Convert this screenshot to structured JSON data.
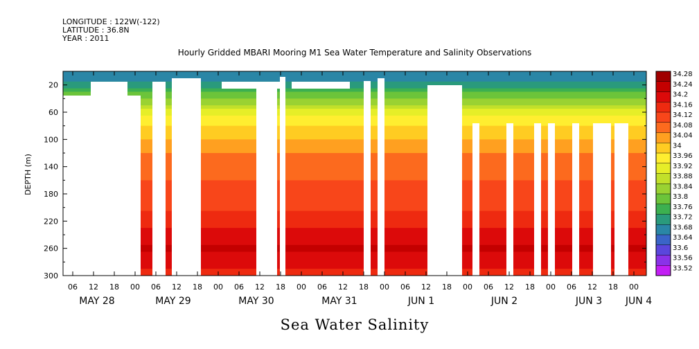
{
  "header": {
    "longitude": "LONGITUDE : 122W(-122)",
    "latitude": "LATITUDE : 36.8N",
    "year": "YEAR : 2011"
  },
  "chart_data": {
    "type": "heatmap",
    "title": "Hourly Gridded MBARI Mooring M1 Sea Water Temperature and Salinity Observations",
    "xlabel": "Sea Water Salinity",
    "ylabel": "DEPTH (m)",
    "ylim": [
      300,
      0
    ],
    "y_ticks": [
      20,
      60,
      100,
      140,
      180,
      220,
      260,
      300
    ],
    "hour_ticks": [
      "06",
      "12",
      "18",
      "00",
      "06",
      "12",
      "18",
      "00",
      "06",
      "12",
      "18",
      "00",
      "06",
      "12",
      "18",
      "00",
      "06",
      "12",
      "18",
      "00",
      "06",
      "12",
      "18",
      "00",
      "06",
      "12",
      "18",
      "00"
    ],
    "date_labels": [
      "MAY 28",
      "MAY 29",
      "MAY 30",
      "MAY 31",
      "JUN  1",
      "JUN  2",
      "JUN  3",
      "JUN  4"
    ],
    "colorbar_levels": [
      "34.28",
      "34.24",
      "34.2",
      "34.16",
      "34.12",
      "34.08",
      "34.04",
      "34",
      "33.96",
      "33.92",
      "33.88",
      "33.84",
      "33.8",
      "33.76",
      "33.72",
      "33.68",
      "33.64",
      "33.6",
      "33.56",
      "33.52"
    ],
    "colorbar_colors": [
      "#a00000",
      "#c40000",
      "#dc0a0a",
      "#ee2a10",
      "#f8461a",
      "#fc6a1e",
      "#ffa020",
      "#ffcc22",
      "#ffee30",
      "#e6ee28",
      "#c2e02a",
      "#9ad232",
      "#6cc43a",
      "#3cb050",
      "#2a9a7c",
      "#2a86a6",
      "#3a64c8",
      "#5a46dc",
      "#8a32e8",
      "#c21ef4"
    ],
    "profile_depth_m": [
      12,
      20,
      40,
      60,
      80,
      100,
      120,
      140,
      160,
      180,
      200,
      220,
      240,
      260,
      280,
      300
    ],
    "profile_salinity": [
      33.7,
      33.74,
      33.84,
      33.94,
      34.0,
      34.04,
      34.08,
      34.1,
      34.12,
      34.13,
      34.15,
      34.18,
      34.22,
      34.25,
      34.22,
      34.18
    ]
  }
}
